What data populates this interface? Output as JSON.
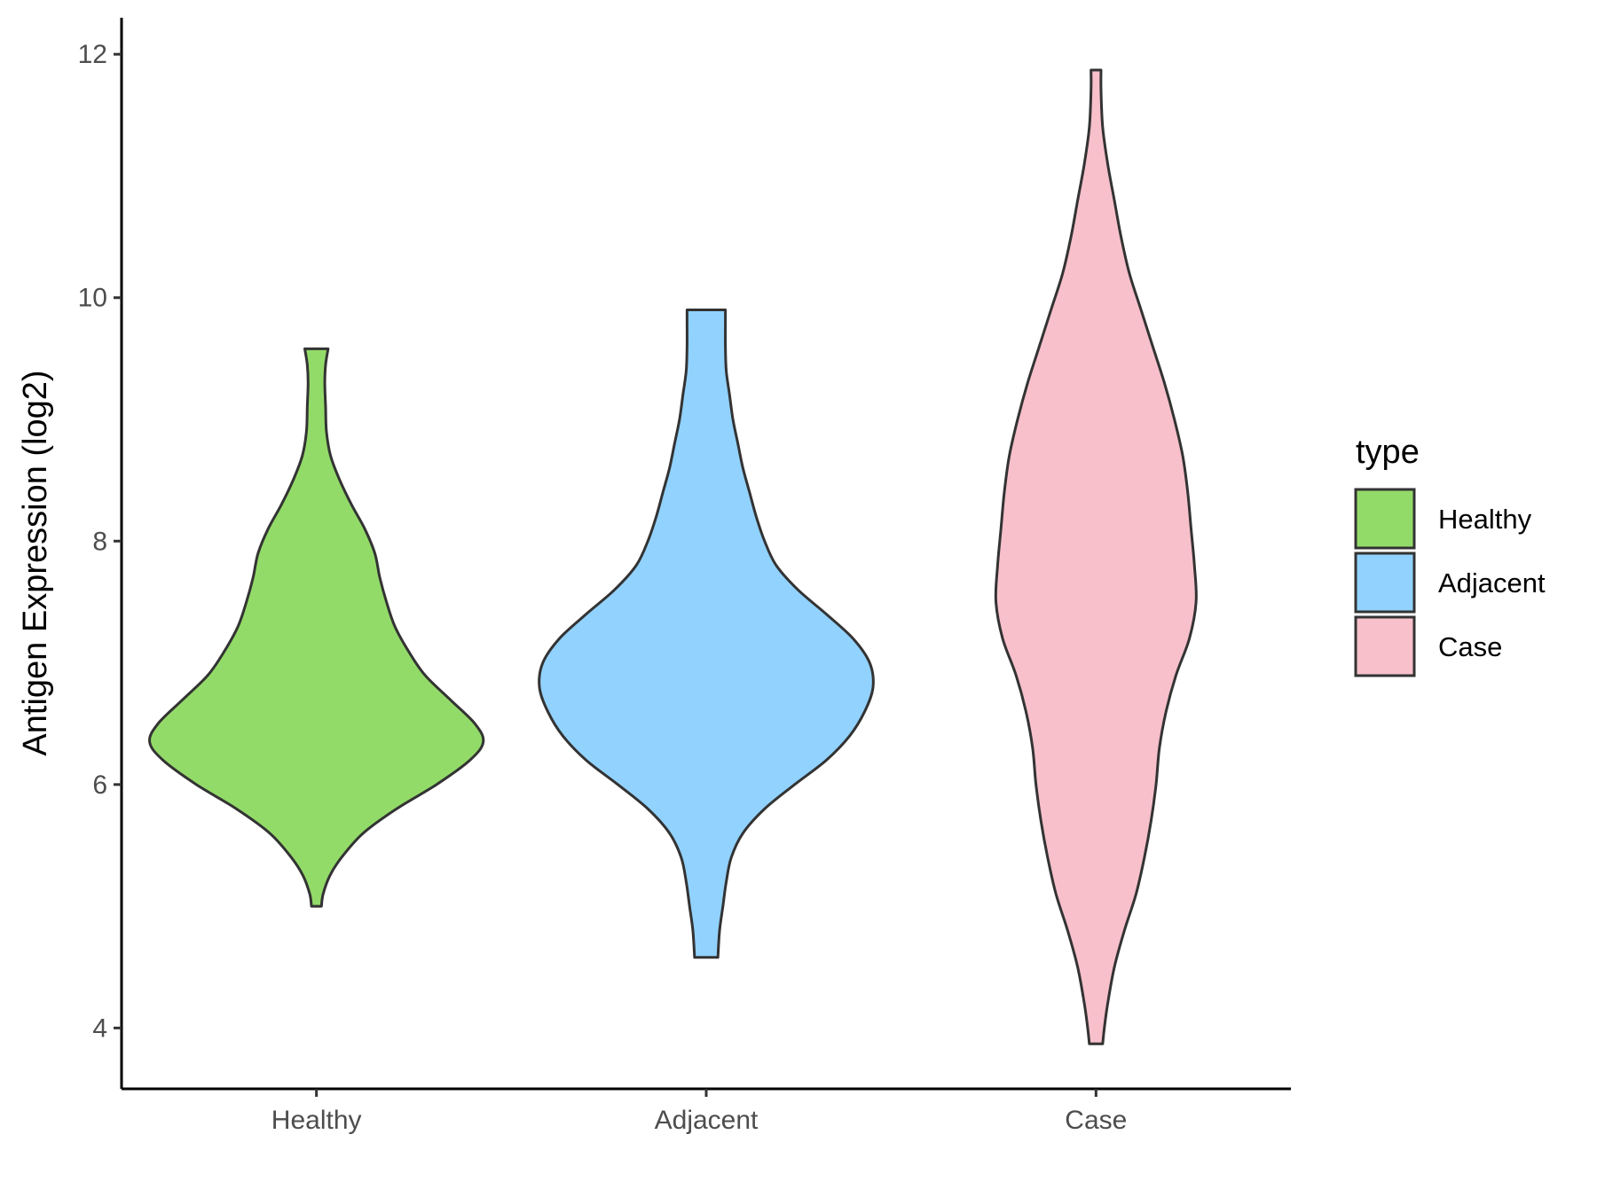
{
  "chart_data": {
    "type": "violin",
    "ylabel": "Antigen Expression (log2)",
    "xlabel": "",
    "ylim": [
      3.5,
      12.3
    ],
    "yticks": [
      4,
      6,
      8,
      10,
      12
    ],
    "categories": [
      "Healthy",
      "Adjacent",
      "Case"
    ],
    "grid": false,
    "legend": {
      "title": "type",
      "placement": "right",
      "entries": [
        {
          "label": "Healthy",
          "color": "#93DB69"
        },
        {
          "label": "Adjacent",
          "color": "#92D2FF"
        },
        {
          "label": "Case",
          "color": "#F7C0CB"
        }
      ]
    },
    "series": [
      {
        "category": "Healthy",
        "color": "#93DB69",
        "min": 5.0,
        "max": 9.58,
        "profile": [
          [
            5.0,
            0.03
          ],
          [
            5.1,
            0.04
          ],
          [
            5.25,
            0.08
          ],
          [
            5.4,
            0.15
          ],
          [
            5.6,
            0.28
          ],
          [
            5.8,
            0.48
          ],
          [
            6.0,
            0.72
          ],
          [
            6.2,
            0.92
          ],
          [
            6.35,
            1.0
          ],
          [
            6.5,
            0.95
          ],
          [
            6.7,
            0.8
          ],
          [
            6.9,
            0.65
          ],
          [
            7.1,
            0.55
          ],
          [
            7.3,
            0.47
          ],
          [
            7.5,
            0.42
          ],
          [
            7.7,
            0.38
          ],
          [
            7.9,
            0.35
          ],
          [
            8.1,
            0.29
          ],
          [
            8.3,
            0.21
          ],
          [
            8.5,
            0.14
          ],
          [
            8.7,
            0.085
          ],
          [
            8.9,
            0.06
          ],
          [
            9.1,
            0.055
          ],
          [
            9.3,
            0.05
          ],
          [
            9.45,
            0.055
          ],
          [
            9.58,
            0.07
          ]
        ]
      },
      {
        "category": "Adjacent",
        "color": "#92D2FF",
        "min": 4.58,
        "max": 9.9,
        "profile": [
          [
            4.58,
            0.07
          ],
          [
            4.8,
            0.08
          ],
          [
            5.0,
            0.1
          ],
          [
            5.2,
            0.12
          ],
          [
            5.4,
            0.15
          ],
          [
            5.6,
            0.22
          ],
          [
            5.8,
            0.35
          ],
          [
            6.0,
            0.53
          ],
          [
            6.2,
            0.72
          ],
          [
            6.4,
            0.86
          ],
          [
            6.6,
            0.95
          ],
          [
            6.8,
            1.0
          ],
          [
            7.0,
            0.98
          ],
          [
            7.2,
            0.88
          ],
          [
            7.4,
            0.72
          ],
          [
            7.6,
            0.55
          ],
          [
            7.8,
            0.42
          ],
          [
            8.0,
            0.35
          ],
          [
            8.2,
            0.3
          ],
          [
            8.4,
            0.26
          ],
          [
            8.6,
            0.22
          ],
          [
            8.8,
            0.19
          ],
          [
            9.0,
            0.16
          ],
          [
            9.2,
            0.14
          ],
          [
            9.4,
            0.12
          ],
          [
            9.6,
            0.115
          ],
          [
            9.8,
            0.115
          ],
          [
            9.9,
            0.115
          ]
        ]
      },
      {
        "category": "Case",
        "color": "#F7C0CB",
        "min": 3.87,
        "max": 11.87,
        "profile": [
          [
            3.87,
            0.04
          ],
          [
            4.0,
            0.05
          ],
          [
            4.2,
            0.07
          ],
          [
            4.5,
            0.11
          ],
          [
            4.8,
            0.17
          ],
          [
            5.1,
            0.24
          ],
          [
            5.4,
            0.29
          ],
          [
            5.7,
            0.33
          ],
          [
            6.0,
            0.36
          ],
          [
            6.3,
            0.38
          ],
          [
            6.6,
            0.42
          ],
          [
            6.9,
            0.48
          ],
          [
            7.2,
            0.56
          ],
          [
            7.5,
            0.6
          ],
          [
            7.8,
            0.59
          ],
          [
            8.1,
            0.57
          ],
          [
            8.4,
            0.55
          ],
          [
            8.7,
            0.52
          ],
          [
            9.0,
            0.47
          ],
          [
            9.3,
            0.41
          ],
          [
            9.6,
            0.34
          ],
          [
            9.9,
            0.27
          ],
          [
            10.2,
            0.2
          ],
          [
            10.5,
            0.15
          ],
          [
            10.8,
            0.11
          ],
          [
            11.1,
            0.07
          ],
          [
            11.4,
            0.04
          ],
          [
            11.7,
            0.03
          ],
          [
            11.87,
            0.03
          ]
        ]
      }
    ]
  }
}
